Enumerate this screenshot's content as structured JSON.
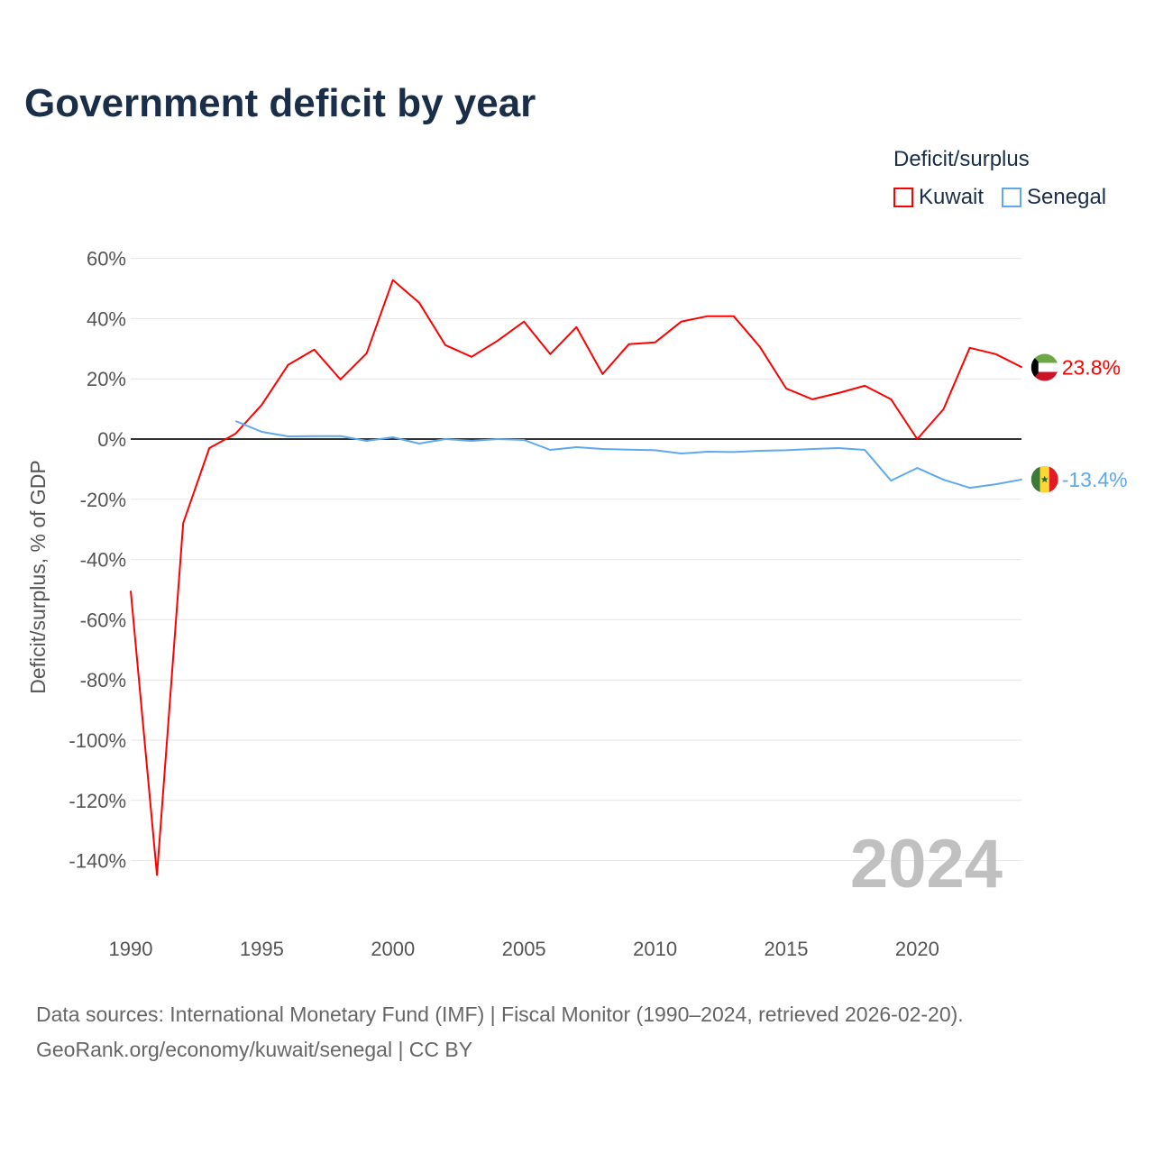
{
  "chart_data": {
    "type": "line",
    "title": "Government deficit by year",
    "ylabel": "Deficit/surplus, % of GDP",
    "xlabel": "",
    "ylim": [
      -150,
      60
    ],
    "xlim": [
      1990,
      2024
    ],
    "yticks": [
      60,
      40,
      20,
      0,
      -20,
      -40,
      -60,
      -80,
      -100,
      -120,
      -140
    ],
    "ytick_labels": [
      "60%",
      "40%",
      "20%",
      "0%",
      "-20%",
      "-40%",
      "-60%",
      "-80%",
      "-100%",
      "-120%",
      "-140%"
    ],
    "xticks": [
      1990,
      1995,
      2000,
      2005,
      2010,
      2015,
      2020
    ],
    "xtick_labels": [
      "1990",
      "1995",
      "2000",
      "2005",
      "2010",
      "2015",
      "2020"
    ],
    "grid": true,
    "legend_title": "Deficit/surplus",
    "legend_position": "top-right",
    "year_watermark": "2024",
    "series": [
      {
        "name": "Kuwait",
        "color": "#ff0000",
        "end_label": "23.8%",
        "x": [
          1990,
          1991,
          1992,
          1993,
          1994,
          1995,
          1996,
          1997,
          1998,
          1999,
          2000,
          2001,
          2002,
          2003,
          2004,
          2005,
          2006,
          2007,
          2008,
          2009,
          2010,
          2011,
          2012,
          2013,
          2014,
          2015,
          2016,
          2017,
          2018,
          2019,
          2020,
          2021,
          2022,
          2023,
          2024
        ],
        "values": [
          -50.4,
          -144.8,
          -27.9,
          -3,
          1.8,
          11.4,
          24.6,
          29.7,
          19.8,
          28.5,
          52.8,
          45.3,
          31.2,
          27.3,
          32.7,
          39,
          28.2,
          37.2,
          21.6,
          31.5,
          32.1,
          39,
          40.8,
          40.8,
          30.6,
          16.8,
          13.2,
          15.3,
          17.7,
          13.2,
          0,
          9.9,
          30.3,
          28.2,
          23.8
        ]
      },
      {
        "name": "Senegal",
        "color": "#5ea8f0",
        "end_label": "-13.4%",
        "x": [
          1994,
          1995,
          1996,
          1997,
          1998,
          1999,
          2000,
          2001,
          2002,
          2003,
          2004,
          2005,
          2006,
          2007,
          2008,
          2009,
          2010,
          2011,
          2012,
          2013,
          2014,
          2015,
          2016,
          2017,
          2018,
          2019,
          2020,
          2021,
          2022,
          2023,
          2024
        ],
        "values": [
          6,
          2.4,
          0.9,
          1,
          1,
          -0.6,
          0.6,
          -1.5,
          0,
          -0.6,
          0,
          -0.3,
          -3.6,
          -2.7,
          -3.3,
          -3.5,
          -3.7,
          -4.8,
          -4.2,
          -4.3,
          -3.9,
          -3.7,
          -3.3,
          -3,
          -3.6,
          -13.8,
          -9.6,
          -13.5,
          -16.2,
          -15,
          -13.4
        ]
      }
    ]
  },
  "footer": {
    "line1": "Data sources: International Monetary Fund (IMF) | Fiscal Monitor (1990–2024, retrieved 2026-02-20).",
    "line2": "GeoRank.org/economy/kuwait/senegal | CC BY"
  }
}
